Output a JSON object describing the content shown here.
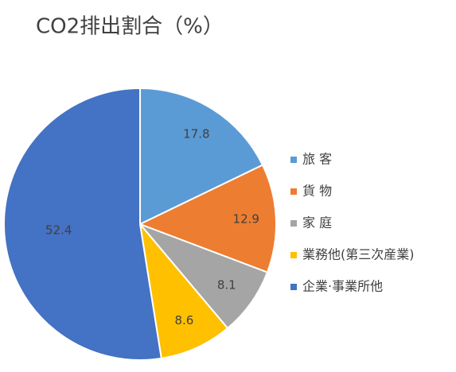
{
  "chart_data": {
    "type": "pie",
    "title": "CO2排出割合（%）",
    "categories": [
      "旅 客",
      "貨 物",
      "家 庭",
      "業務他(第三次産業)",
      "企業·事業所他"
    ],
    "values": [
      17.8,
      12.9,
      8.1,
      8.6,
      52.4
    ],
    "colors": [
      "#5b9bd5",
      "#ed7d31",
      "#a5a5a5",
      "#ffc000",
      "#4472c4"
    ],
    "legend": "right"
  }
}
